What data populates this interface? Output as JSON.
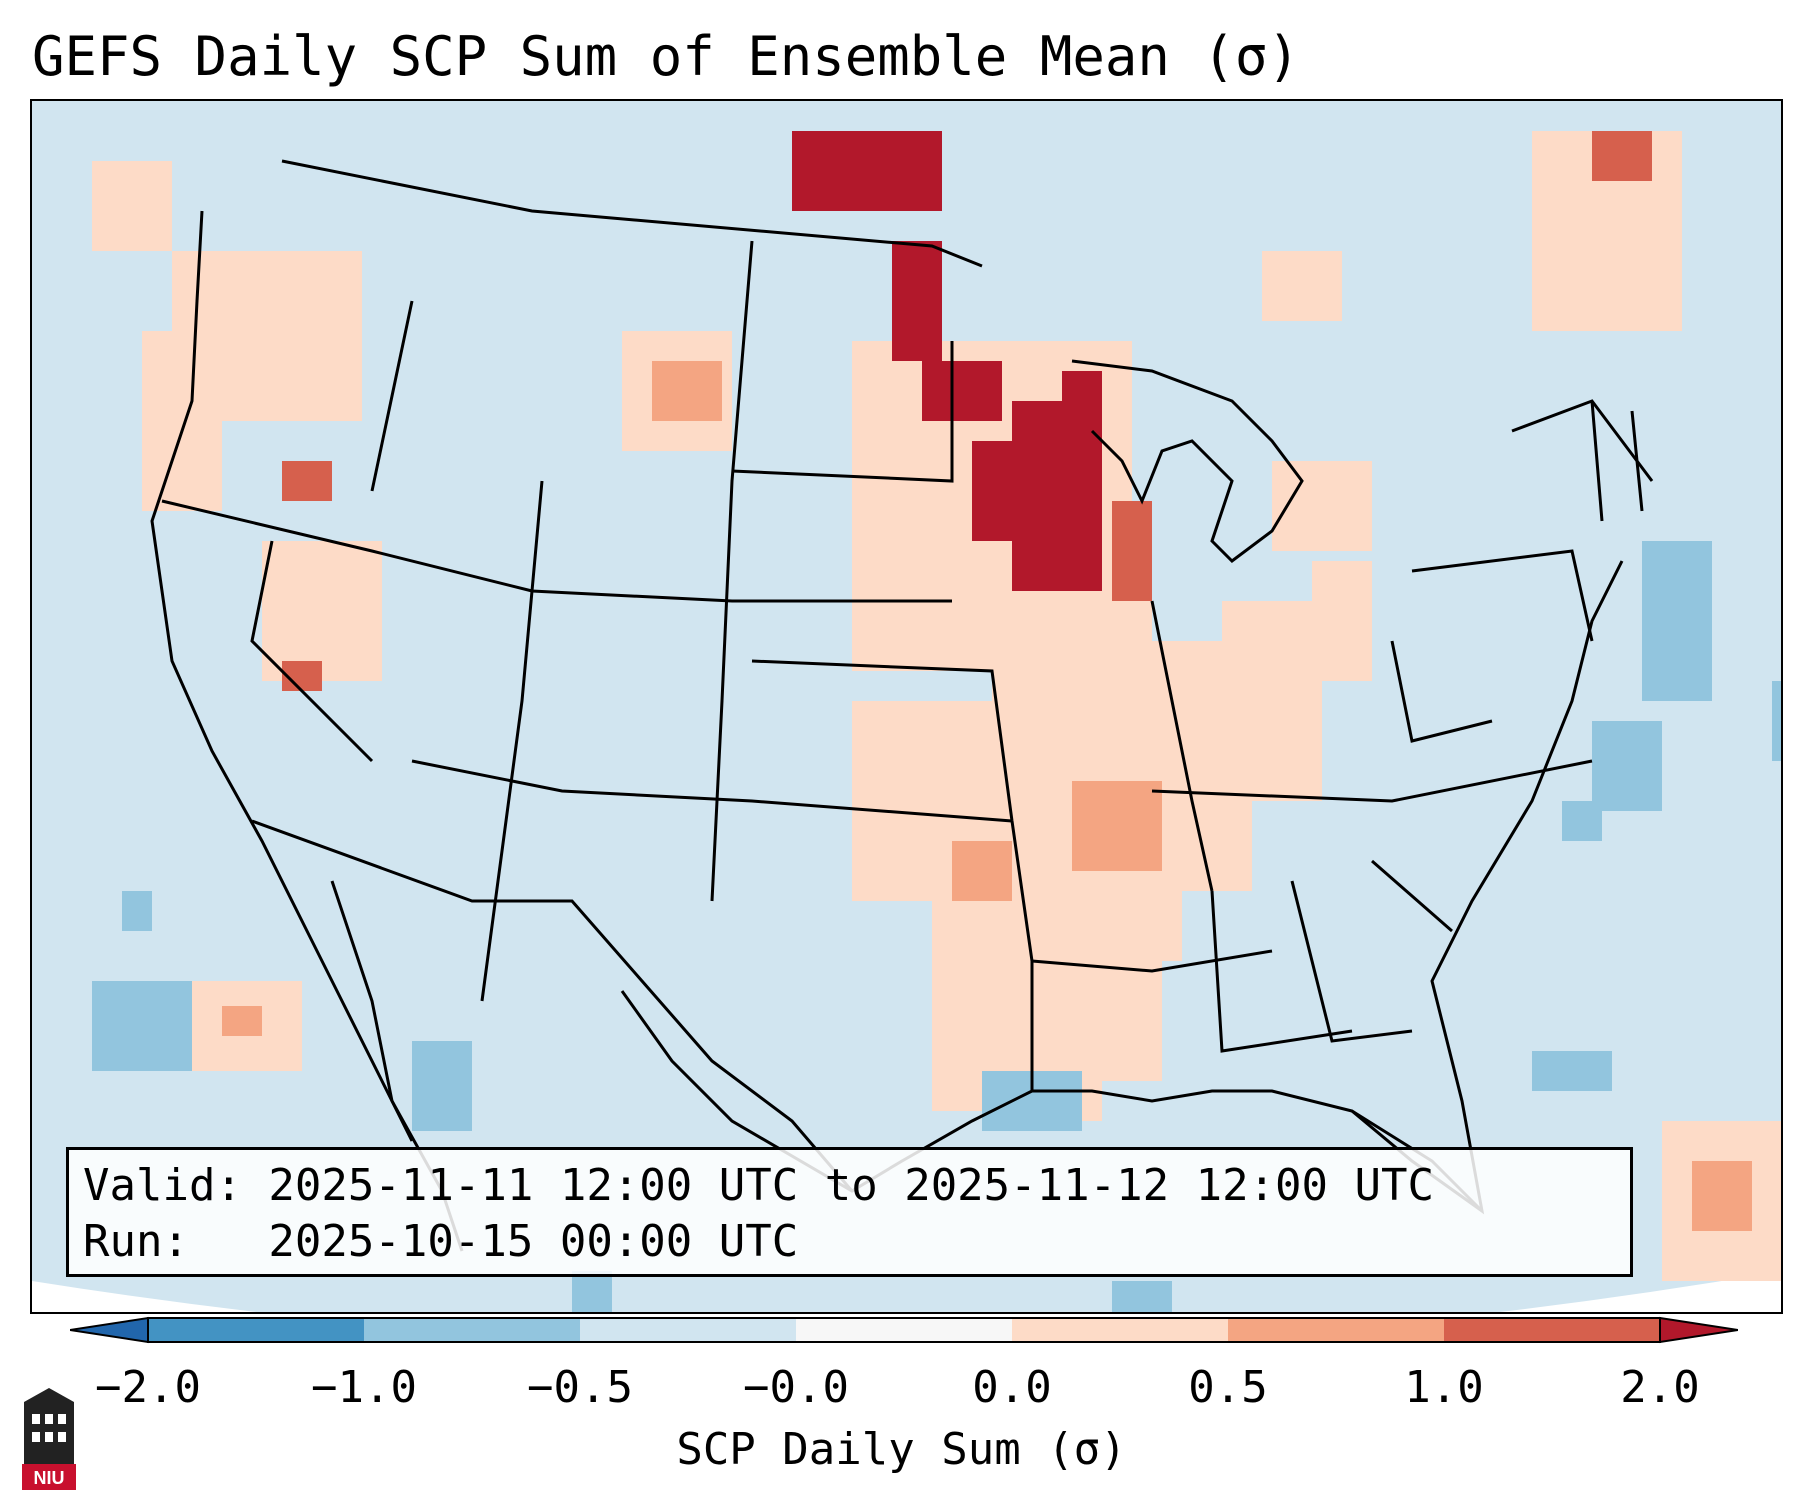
{
  "title": "GEFS Daily SCP Sum of Ensemble Mean (σ)",
  "info": {
    "valid_line": "Valid: 2025-11-11 12:00 UTC to 2025-11-12 12:00 UTC",
    "run_line": "Run:   2025-10-15 00:00 UTC"
  },
  "colorbar": {
    "label": "SCP Daily Sum (σ)",
    "ticks": [
      "−2.0",
      "−1.0",
      "−0.5",
      "−0.0",
      "0.0",
      "0.5",
      "1.0",
      "2.0"
    ],
    "bins": [
      {
        "range": "< -2.0",
        "color": "#2166ac"
      },
      {
        "range": "-2.0 to -1.0",
        "color": "#4393c3"
      },
      {
        "range": "-1.0 to -0.5",
        "color": "#92c5de"
      },
      {
        "range": "-0.5 to -0.0",
        "color": "#d1e5f0"
      },
      {
        "range": "-0.0 to 0.0",
        "color": "#f7f7f7"
      },
      {
        "range": "0.0 to 0.5",
        "color": "#fddbc7"
      },
      {
        "range": "0.5 to 1.0",
        "color": "#f4a582"
      },
      {
        "range": "1.0 to 2.0",
        "color": "#d6604d"
      },
      {
        "range": "> 2.0",
        "color": "#b2182b"
      }
    ]
  },
  "logo": {
    "icon": "niu-logo-icon",
    "text": "NIU",
    "color": "#c8102e"
  },
  "map": {
    "background_color": "#d1e5f0",
    "features": [
      "Strongest positive anomalies (> 1.0) over Minnesota, Wisconsin and the Dakotas",
      "Weak positive anomalies over the Pacific Northwest, Mississippi Valley and Gulf Coast",
      "Negative anomalies offshore in the western Atlantic and the Gulf of Mexico"
    ]
  }
}
